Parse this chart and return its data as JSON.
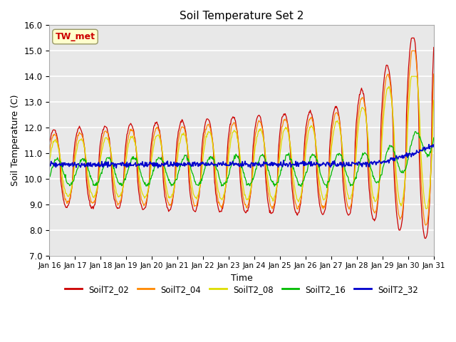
{
  "title": "Soil Temperature Set 2",
  "xlabel": "Time",
  "ylabel": "Soil Temperature (C)",
  "ylim": [
    7.0,
    16.0
  ],
  "yticks": [
    7.0,
    8.0,
    9.0,
    10.0,
    11.0,
    12.0,
    13.0,
    14.0,
    15.0,
    16.0
  ],
  "xtick_labels": [
    "Jan 16",
    "Jan 17",
    "Jan 18",
    "Jan 19",
    "Jan 20",
    "Jan 21",
    "Jan 22",
    "Jan 23",
    "Jan 24",
    "Jan 25",
    "Jan 26",
    "Jan 27",
    "Jan 28",
    "Jan 29",
    "Jan 30",
    "Jan 31"
  ],
  "colors": {
    "SoilT2_02": "#cc0000",
    "SoilT2_04": "#ff8800",
    "SoilT2_08": "#dddd00",
    "SoilT2_16": "#00bb00",
    "SoilT2_32": "#0000cc"
  },
  "annotation_text": "TW_met",
  "annotation_color": "#cc0000",
  "annotation_bg": "#ffffcc",
  "n_points": 720
}
